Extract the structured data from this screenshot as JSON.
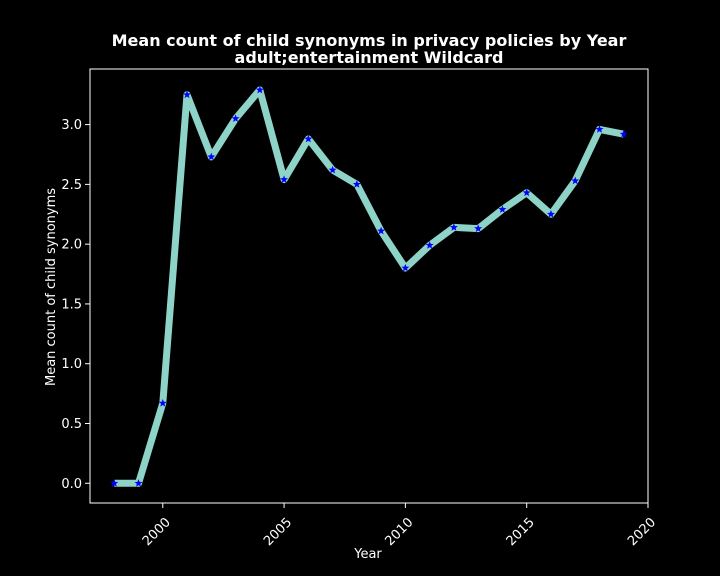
{
  "chart_data": {
    "type": "line",
    "title_line1": "Mean count of child synonyms in privacy policies by Year",
    "title_line2": "adult;entertainment Wildcard",
    "xlabel": "Year",
    "ylabel": "Mean count of child synonyms",
    "xlim": [
      1997.0,
      2020.0
    ],
    "ylim": [
      -0.165,
      3.465
    ],
    "xticks": [
      2000,
      2005,
      2010,
      2015,
      2020
    ],
    "yticks": [
      0.0,
      0.5,
      1.0,
      1.5,
      2.0,
      2.5,
      3.0
    ],
    "ytick_labels": [
      "0.0",
      "0.5",
      "1.0",
      "1.5",
      "2.0",
      "2.5",
      "3.0"
    ],
    "xtick_rotation": 45,
    "grid": false,
    "line_color": "#8dd3c7",
    "marker_color": "#0000ff",
    "marker": "star",
    "x": [
      1998,
      1999,
      2000,
      2001,
      2002,
      2003,
      2004,
      2005,
      2006,
      2007,
      2008,
      2009,
      2010,
      2011,
      2012,
      2013,
      2014,
      2015,
      2016,
      2017,
      2018,
      2019
    ],
    "y": [
      0.0,
      0.0,
      0.67,
      3.25,
      2.73,
      3.05,
      3.29,
      2.54,
      2.88,
      2.62,
      2.5,
      2.11,
      1.8,
      1.99,
      2.14,
      2.13,
      2.29,
      2.43,
      2.25,
      2.53,
      2.96,
      2.92
    ]
  }
}
